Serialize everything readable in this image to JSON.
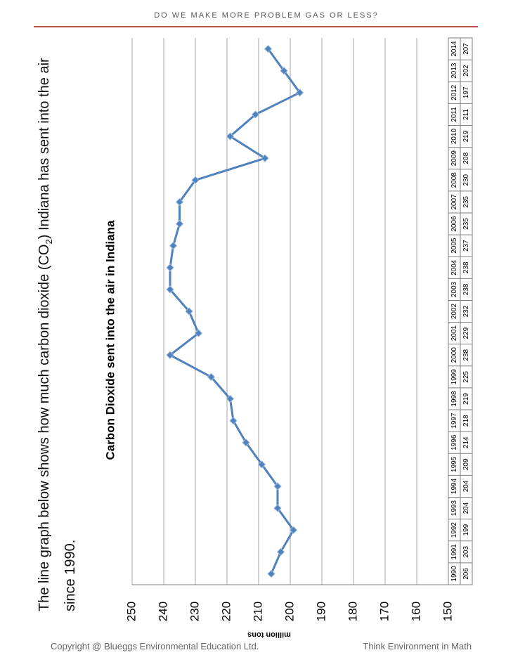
{
  "header": {
    "title": "DO WE MAKE MORE PROBLEM GAS OR LESS?",
    "rule_color": "#c0504d"
  },
  "intro": {
    "text_before_sub": "The line graph below shows how much carbon dioxide (CO",
    "sub": "2",
    "text_after_sub": ") Indiana has sent into the air since 1990."
  },
  "chart_data": {
    "type": "line",
    "title": "Carbon Dioxide sent into the air in Indiana",
    "ylabel": "million tons",
    "xlabel": "",
    "ylim": [
      150,
      250
    ],
    "yticks": [
      150,
      160,
      170,
      180,
      190,
      200,
      210,
      220,
      230,
      240,
      250
    ],
    "grid": true,
    "categories": [
      "1990",
      "1991",
      "1992",
      "1993",
      "1994",
      "1995",
      "1996",
      "1997",
      "1998",
      "1999",
      "2000",
      "2001",
      "2002",
      "2003",
      "2004",
      "2005",
      "2006",
      "2007",
      "2008",
      "2009",
      "2010",
      "2011",
      "2012",
      "2013",
      "2014"
    ],
    "values": [
      206,
      203,
      199,
      204,
      204,
      209,
      214,
      218,
      219,
      225,
      238,
      229,
      232,
      238,
      238,
      237,
      235,
      235,
      230,
      208,
      219,
      211,
      197,
      202,
      207
    ],
    "series_color": "#4f81bd",
    "data_table": true
  },
  "footer": {
    "left": "Copyright @ Blueggs Environmental Education Ltd.",
    "right": "Think Environment in Math"
  }
}
